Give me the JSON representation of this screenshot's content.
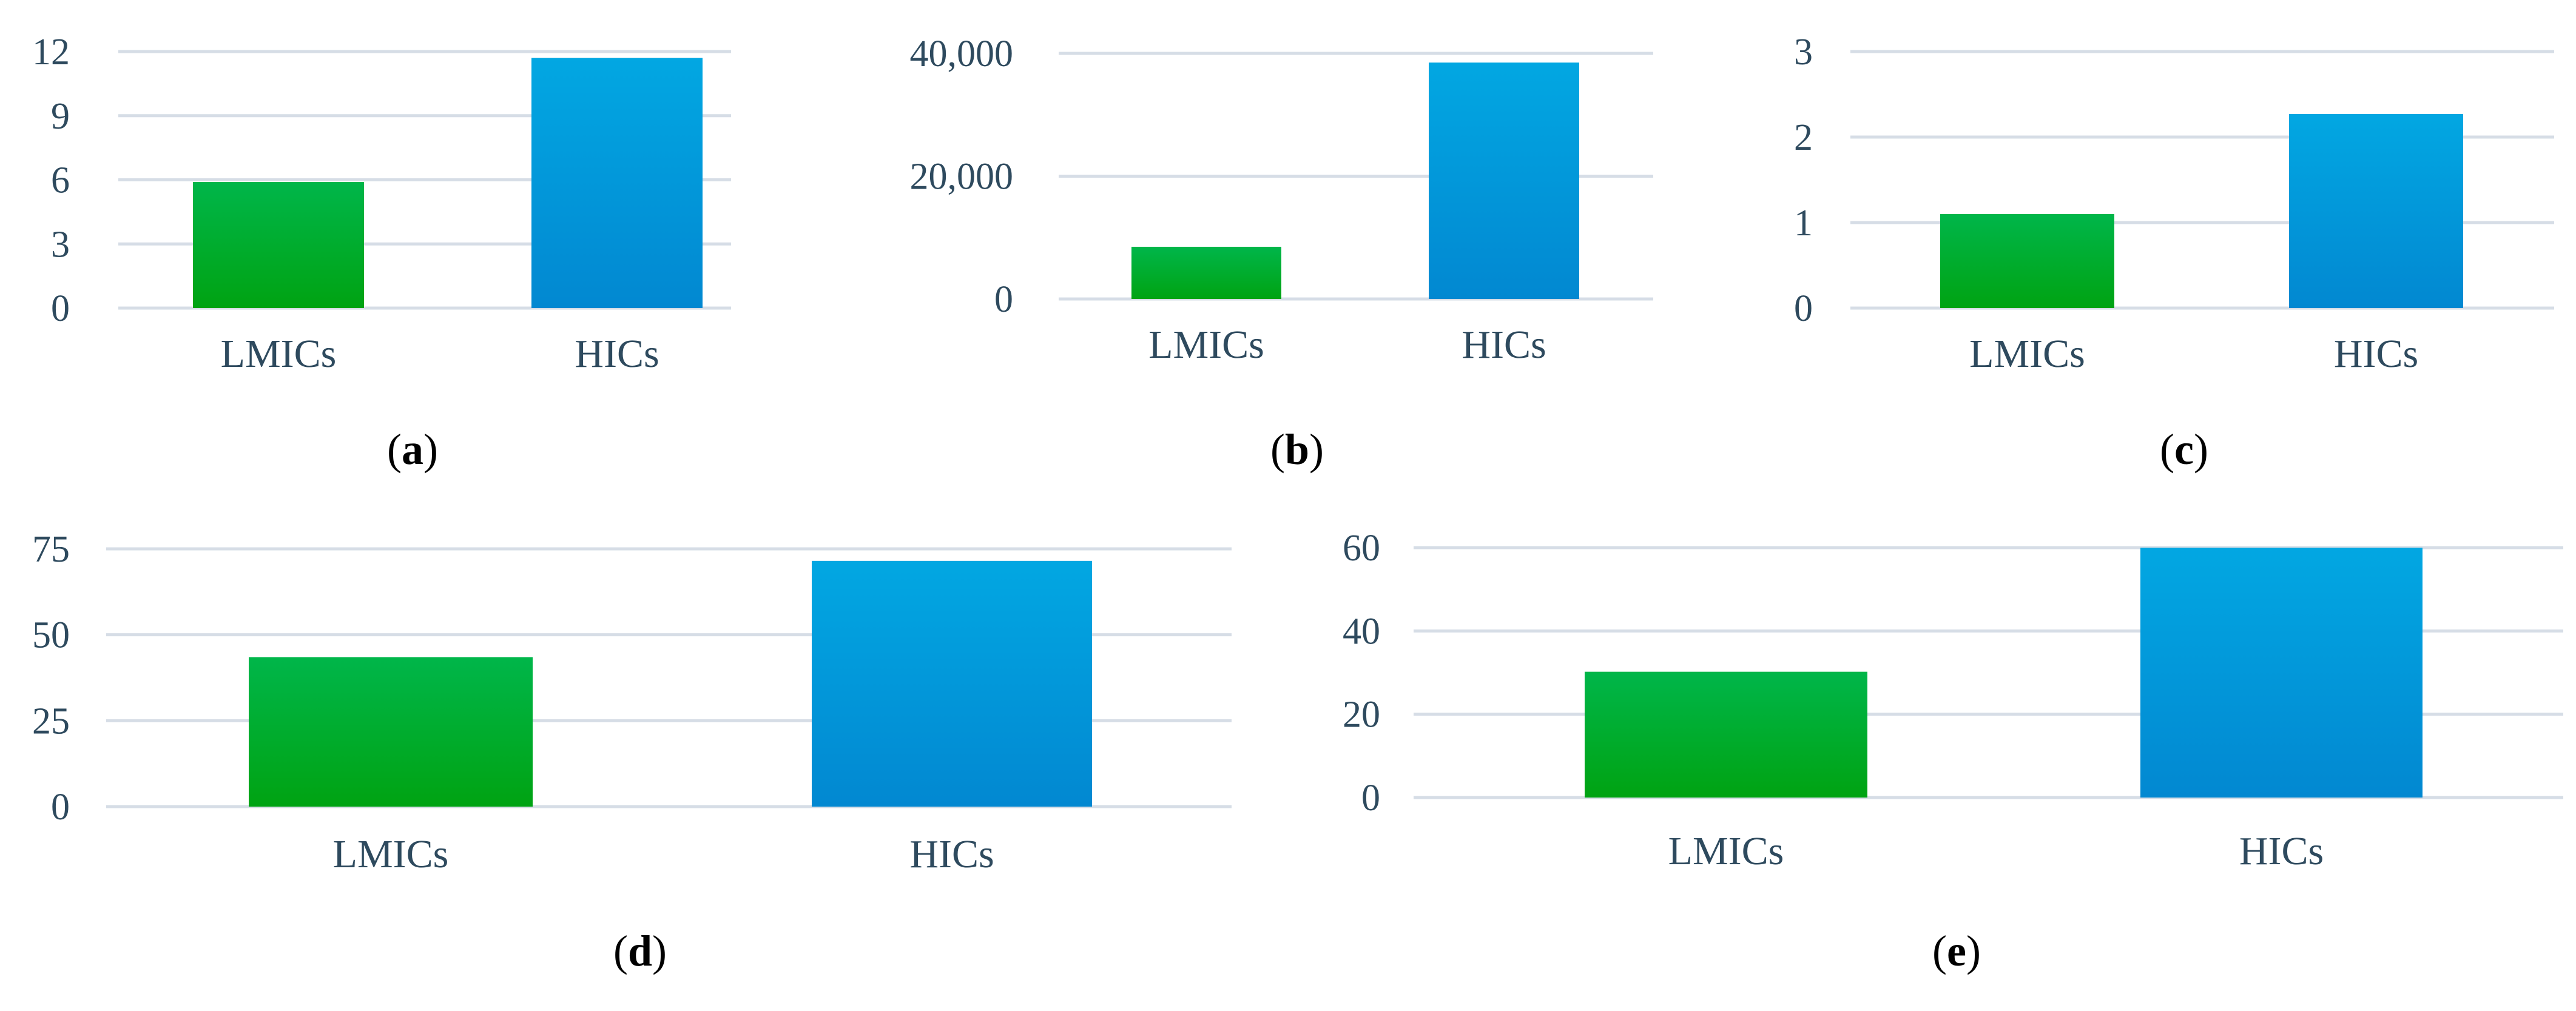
{
  "colors": {
    "lmics_top": "#00b64a",
    "lmics_bottom": "#00a312",
    "hics_top": "#02a7e2",
    "hics_bottom": "#0288d1",
    "grid": "#d6dde6",
    "tick_text": "#2e4a5e"
  },
  "chart_data": [
    {
      "type": "bar",
      "panel": "a",
      "categories": [
        "LMICs",
        "HICs"
      ],
      "values": [
        5.9,
        11.7
      ],
      "ylim": [
        0,
        12
      ],
      "yticks": [
        0,
        3,
        6,
        9,
        12
      ],
      "ytick_labels": [
        "0",
        "3",
        "6",
        "9",
        "12"
      ],
      "grid": true
    },
    {
      "type": "bar",
      "panel": "b",
      "categories": [
        "LMICs",
        "HICs"
      ],
      "values": [
        8500,
        38500
      ],
      "ylim": [
        0,
        40000
      ],
      "yticks": [
        0,
        20000,
        40000
      ],
      "ytick_labels": [
        "0",
        "20,000",
        "40,000"
      ],
      "grid": true
    },
    {
      "type": "bar",
      "panel": "c",
      "categories": [
        "LMICs",
        "HICs"
      ],
      "values": [
        1.1,
        2.27
      ],
      "ylim": [
        0,
        3
      ],
      "yticks": [
        0,
        1,
        2,
        3
      ],
      "ytick_labels": [
        "0",
        "1",
        "2",
        "3"
      ],
      "grid": true
    },
    {
      "type": "bar",
      "panel": "d",
      "categories": [
        "LMICs",
        "HICs"
      ],
      "values": [
        43.5,
        71.5
      ],
      "ylim": [
        0,
        75
      ],
      "yticks": [
        0,
        25,
        50,
        75
      ],
      "ytick_labels": [
        "0",
        "25",
        "50",
        "75"
      ],
      "grid": true
    },
    {
      "type": "bar",
      "panel": "e",
      "categories": [
        "LMICs",
        "HICs"
      ],
      "values": [
        30.2,
        60
      ],
      "ylim": [
        0,
        60
      ],
      "yticks": [
        0,
        20,
        40,
        60
      ],
      "ytick_labels": [
        "0",
        "20",
        "40",
        "60"
      ],
      "grid": true
    }
  ]
}
